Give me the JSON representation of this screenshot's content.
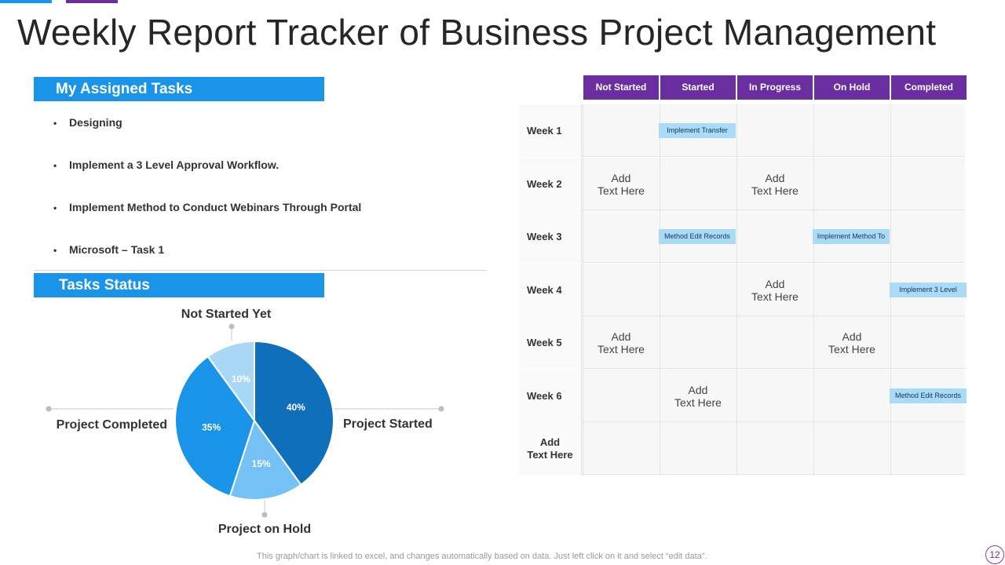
{
  "title": "Weekly Report Tracker of Business Project Management",
  "assigned": {
    "header": "My Assigned Tasks",
    "tasks": [
      "Designing",
      "Implement a 3 Level Approval Workflow.",
      "Implement Method to Conduct Webinars Through Portal",
      "Microsoft – Task 1"
    ]
  },
  "status": {
    "header": "Tasks Status"
  },
  "chart_data": {
    "type": "pie",
    "slices": [
      {
        "label": "Project Started",
        "value": 40,
        "value_label": "40%",
        "color": "#0f6fba"
      },
      {
        "label": "Project on Hold",
        "value": 15,
        "value_label": "15%",
        "color": "#75c0f4"
      },
      {
        "label": "Project Completed",
        "value": 35,
        "value_label": "35%",
        "color": "#1a94e8"
      },
      {
        "label": "Not Started Yet",
        "value": 10,
        "value_label": "10%",
        "color": "#a9d8f7"
      }
    ]
  },
  "tracker": {
    "columns": [
      "Not Started",
      "Started",
      "In Progress",
      "On Hold",
      "Completed"
    ],
    "rows": [
      {
        "label": "Week 1",
        "cells": [
          {
            "col": 1,
            "kind": "tag",
            "text": "Implement  Transfer"
          }
        ]
      },
      {
        "label": "Week 2",
        "cells": [
          {
            "col": 0,
            "kind": "text",
            "text": "Add\nText Here"
          },
          {
            "col": 2,
            "kind": "text",
            "text": "Add\nText Here"
          }
        ]
      },
      {
        "label": "Week 3",
        "cells": [
          {
            "col": 1,
            "kind": "tag",
            "text": "Method  Edit Records"
          },
          {
            "col": 3,
            "kind": "tag",
            "text": "Implement  Method To"
          }
        ]
      },
      {
        "label": "Week 4",
        "cells": [
          {
            "col": 2,
            "kind": "text",
            "text": "Add\nText Here"
          },
          {
            "col": 4,
            "kind": "tag",
            "text": "Implement  3 Level"
          }
        ]
      },
      {
        "label": "Week 5",
        "cells": [
          {
            "col": 0,
            "kind": "text",
            "text": "Add\nText Here"
          },
          {
            "col": 3,
            "kind": "text",
            "text": "Add\nText Here"
          }
        ]
      },
      {
        "label": "Week 6",
        "cells": [
          {
            "col": 1,
            "kind": "text",
            "text": "Add\nText Here"
          },
          {
            "col": 4,
            "kind": "tag",
            "text": "Method  Edit Records"
          }
        ]
      },
      {
        "label": "Add\nText Here",
        "cells": []
      }
    ]
  },
  "footer": {
    "note": "This graph/chart is linked to excel,  and changes automatically based on data. Just left click on it and select “edit data”.",
    "page": "12"
  }
}
